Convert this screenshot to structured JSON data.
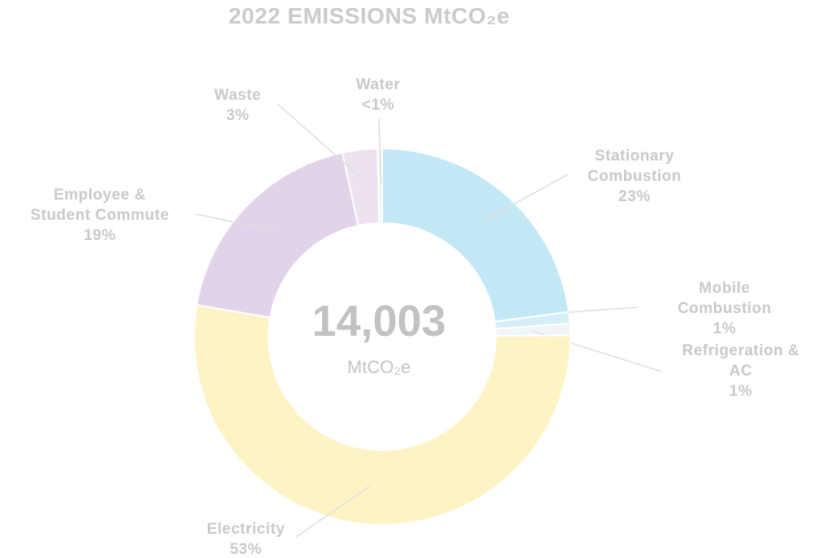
{
  "chart_data": {
    "type": "donut",
    "title": "2022 EMISSIONS MtCO₂e",
    "center_text": "14,003",
    "center_unit": "MtCO₂e",
    "categories": [
      "Stationary Combustion",
      "Mobile Combustion",
      "Refrigeration & AC",
      "Electricity",
      "Employee & Student Commute",
      "Waste",
      "Water"
    ],
    "values": [
      23,
      1,
      1,
      53,
      19,
      3,
      0.4
    ],
    "value_labels": [
      "23%",
      "1%",
      "1%",
      "53%",
      "19%",
      "3%",
      "<1%"
    ],
    "colors": [
      "#c3e8f5",
      "#d6eef8",
      "#eef6fa",
      "#fdf3c4",
      "#e1d4ea",
      "#ede3ef",
      "#f3f3f3"
    ]
  }
}
